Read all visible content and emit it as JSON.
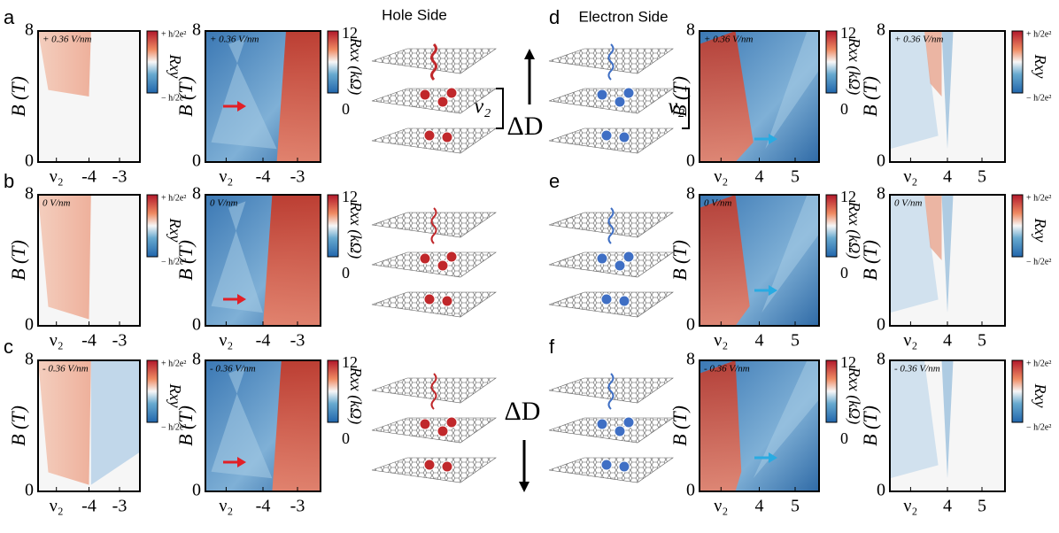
{
  "figure": {
    "hole_title": "Hole Side",
    "electron_title": "Electron Side",
    "y_label": "B (T)",
    "y_ticks": [
      "0",
      "8"
    ],
    "hole_x_ticks": [
      "ν₂",
      "-4",
      "-3"
    ],
    "electron_x_ticks": [
      "ν₂",
      "4",
      "5"
    ],
    "rxx_label": "Rxx (kΩ)",
    "rxx_ticks": [
      "12",
      "0"
    ],
    "rxy_label": "Rxy",
    "rxy_ticks": [
      "+ h/2e²",
      "− h/2e²"
    ],
    "delta_d": "ΔD",
    "nu2": "ν₂",
    "rows": [
      {
        "hole_letter": "a",
        "electron_letter": "d",
        "field": "+ 0.36 V/nm"
      },
      {
        "hole_letter": "b",
        "electron_letter": "e",
        "field": "0 V/nm"
      },
      {
        "hole_letter": "c",
        "electron_letter": "f",
        "field": "- 0.36 V/nm"
      }
    ]
  }
}
